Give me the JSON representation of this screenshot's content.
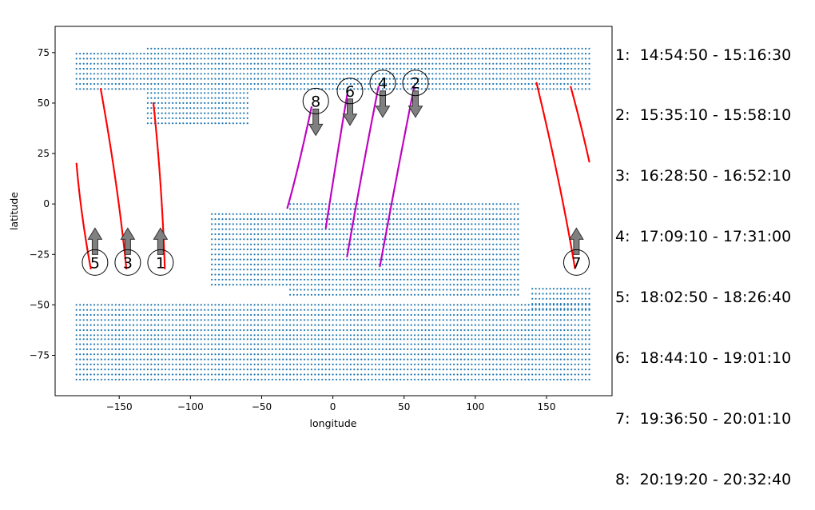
{
  "chart_data": {
    "type": "scatter",
    "title": "",
    "xlabel": "longitude",
    "ylabel": "latitude",
    "xlim": [
      -195,
      196
    ],
    "ylim": [
      -95,
      88
    ],
    "xticks": [
      -150,
      -100,
      -50,
      0,
      50,
      100,
      150
    ],
    "yticks": [
      -75,
      -50,
      -25,
      0,
      25,
      50,
      75
    ],
    "grid": false,
    "colors": {
      "land_points": "#1f77b4",
      "track_red": "#ff0000",
      "track_magenta": "#bf00bf",
      "arrow_fill": "#808080",
      "arrow_edge": "#333333"
    },
    "land_regions": [
      {
        "lon": [
          -180,
          -130
        ],
        "lat": [
          57,
          75
        ]
      },
      {
        "lon": [
          -130,
          180
        ],
        "lat": [
          57,
          78
        ]
      },
      {
        "lon": [
          -130,
          -60
        ],
        "lat": [
          40,
          57
        ]
      },
      {
        "lon": [
          -85,
          10
        ],
        "lat": [
          -40,
          -5
        ]
      },
      {
        "lon": [
          -30,
          130
        ],
        "lat": [
          -45,
          0
        ]
      },
      {
        "lon": [
          -180,
          180
        ],
        "lat": [
          -65,
          -50
        ]
      },
      {
        "lon": [
          -180,
          180
        ],
        "lat": [
          -87,
          -65
        ]
      },
      {
        "lon": [
          140,
          180
        ],
        "lat": [
          -52,
          -42
        ]
      }
    ],
    "tracks": [
      {
        "id": "1",
        "color": "red",
        "points": [
          [
            -126,
            50
          ],
          [
            -120,
            10
          ],
          [
            -118,
            -32
          ]
        ]
      },
      {
        "id": "2",
        "color": "magenta",
        "points": [
          [
            57,
            58
          ],
          [
            45,
            15
          ],
          [
            33,
            -31
          ]
        ]
      },
      {
        "id": "3",
        "color": "red",
        "points": [
          [
            -163,
            57
          ],
          [
            -151,
            10
          ],
          [
            -145,
            -32
          ]
        ]
      },
      {
        "id": "4",
        "color": "magenta",
        "points": [
          [
            32,
            58
          ],
          [
            20,
            15
          ],
          [
            10,
            -26
          ]
        ]
      },
      {
        "id": "5",
        "color": "red",
        "points": [
          [
            -180,
            20
          ],
          [
            -177,
            -5
          ],
          [
            -170,
            -32
          ]
        ]
      },
      {
        "id": "6",
        "color": "magenta",
        "points": [
          [
            10,
            54
          ],
          [
            2,
            20
          ],
          [
            -5,
            -12
          ]
        ]
      },
      {
        "id": "7",
        "color": "red",
        "points": [
          [
            143,
            60
          ],
          [
            160,
            10
          ],
          [
            170,
            -32
          ]
        ]
      },
      {
        "id": "7b",
        "color": "red",
        "points": [
          [
            167,
            58
          ],
          [
            174,
            40
          ],
          [
            180,
            21
          ]
        ]
      },
      {
        "id": "8",
        "color": "magenta",
        "points": [
          [
            -15,
            48
          ],
          [
            -25,
            15
          ],
          [
            -32,
            -2
          ]
        ]
      }
    ],
    "markers": [
      {
        "id": "1",
        "label": "1",
        "lon": -121,
        "lat": -29,
        "arrow": "up"
      },
      {
        "id": "2",
        "label": "2",
        "lon": 58,
        "lat": 60,
        "arrow": "down"
      },
      {
        "id": "3",
        "label": "3",
        "lon": -144,
        "lat": -29,
        "arrow": "up"
      },
      {
        "id": "4",
        "label": "4",
        "lon": 35,
        "lat": 60,
        "arrow": "down"
      },
      {
        "id": "5",
        "label": "5",
        "lon": -167,
        "lat": -29,
        "arrow": "up"
      },
      {
        "id": "6",
        "label": "6",
        "lon": 12,
        "lat": 56,
        "arrow": "down"
      },
      {
        "id": "7",
        "label": "7",
        "lon": 171,
        "lat": -29,
        "arrow": "up"
      },
      {
        "id": "8",
        "label": "8",
        "lon": -12,
        "lat": 51,
        "arrow": "down"
      }
    ],
    "legend": [
      {
        "id": "1",
        "text": "1:  14:54:50 - 15:16:30"
      },
      {
        "id": "2",
        "text": "2:  15:35:10 - 15:58:10"
      },
      {
        "id": "3",
        "text": "3:  16:28:50 - 16:52:10"
      },
      {
        "id": "4",
        "text": "4:  17:09:10 - 17:31:00"
      },
      {
        "id": "5",
        "text": "5:  18:02:50 - 18:26:40"
      },
      {
        "id": "6",
        "text": "6:  18:44:10 - 19:01:10"
      },
      {
        "id": "7",
        "text": "7:  19:36:50 - 20:01:10"
      },
      {
        "id": "8",
        "text": "8:  20:19:20 - 20:32:40"
      }
    ]
  }
}
